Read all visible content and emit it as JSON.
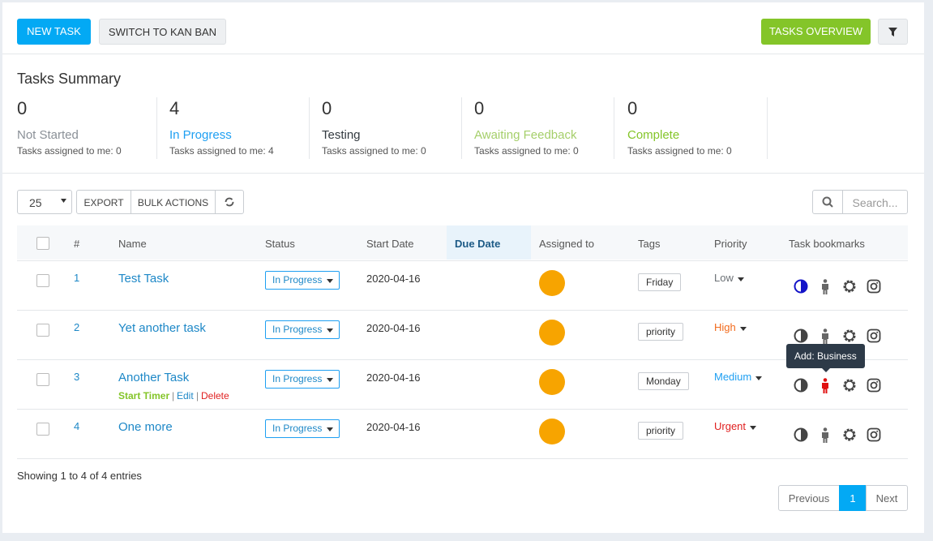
{
  "toolbar": {
    "new_task": "NEW TASK",
    "kanban": "SWITCH TO KAN BAN",
    "overview": "TASKS OVERVIEW"
  },
  "summary": {
    "title": "Tasks Summary",
    "items": [
      {
        "count": 0,
        "label": "Not Started",
        "note": "Tasks assigned to me: 0",
        "color": "#8a9097"
      },
      {
        "count": 4,
        "label": "In Progress",
        "note": "Tasks assigned to me: 4",
        "color": "#1e9ff2"
      },
      {
        "count": 0,
        "label": "Testing",
        "note": "Tasks assigned to me: 0",
        "color": "#333a40"
      },
      {
        "count": 0,
        "label": "Awaiting Feedback",
        "note": "Tasks assigned to me: 0",
        "color": "#a5cf6a"
      },
      {
        "count": 0,
        "label": "Complete",
        "note": "Tasks assigned to me: 0",
        "color": "#84c529"
      }
    ]
  },
  "controls": {
    "page_size": "25",
    "export": "EXPORT",
    "bulk_actions": "BULK ACTIONS",
    "search": "Search..."
  },
  "table": {
    "columns": [
      "#",
      "Name",
      "Status",
      "Start Date",
      "Due Date",
      "Assigned to",
      "Tags",
      "Priority",
      "Task bookmarks"
    ],
    "rows": [
      {
        "id": "1",
        "name": "Test Task",
        "status": "In Progress",
        "start": "2020-04-16",
        "tag": "Friday",
        "priority": "Low",
        "priority_color": "#6b7075"
      },
      {
        "id": "2",
        "name": "Yet another task",
        "status": "In Progress",
        "start": "2020-04-16",
        "tag": "priority",
        "priority": "High",
        "priority_color": "#f26b1d"
      },
      {
        "id": "3",
        "name": "Another Task",
        "status": "In Progress",
        "start": "2020-04-16",
        "tag": "Monday",
        "priority": "Medium",
        "priority_color": "#1e9ff2"
      },
      {
        "id": "4",
        "name": "One more",
        "status": "In Progress",
        "start": "2020-04-16",
        "tag": "priority",
        "priority": "Urgent",
        "priority_color": "#e02020"
      }
    ]
  },
  "row_actions": {
    "start_timer": "Start Timer",
    "separator": "|",
    "edit": "Edit",
    "delete": "Delete"
  },
  "tooltip": "Add: Business",
  "footer": {
    "info": "Showing 1 to 4 of 4 entries",
    "previous": "Previous",
    "page": "1",
    "next": "Next"
  }
}
